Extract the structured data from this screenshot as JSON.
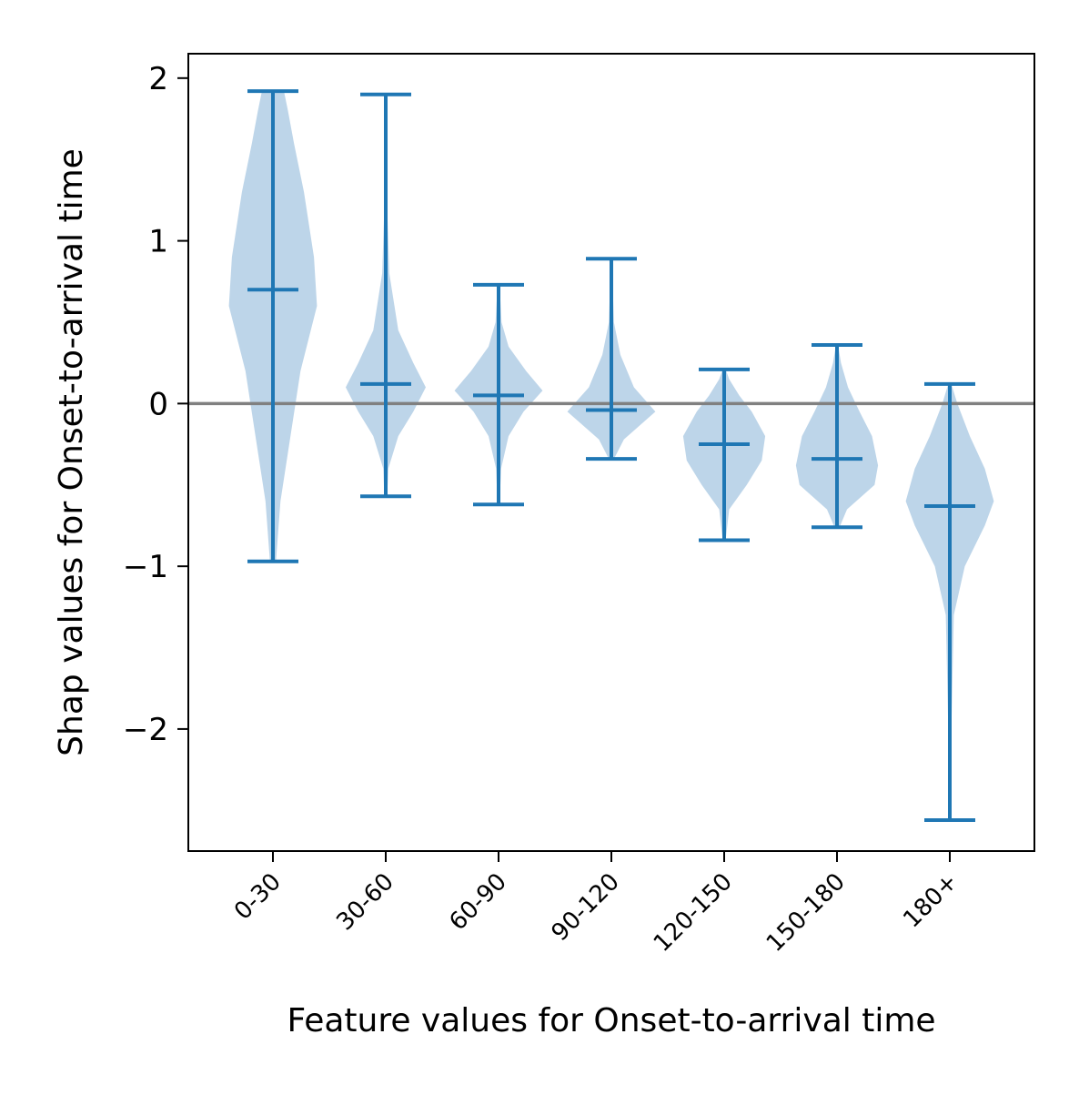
{
  "chart_data": {
    "type": "violin",
    "title": "",
    "xlabel": "Feature values for Onset-to-arrival time",
    "ylabel": "Shap values for Onset-to-arrival time",
    "ylim": [
      -2.75,
      2.15
    ],
    "yticks": [
      -2,
      -1,
      0,
      1,
      2
    ],
    "ytick_labels": [
      "−2",
      "−1",
      "0",
      "1",
      "2"
    ],
    "categories": [
      "0-30",
      "30-60",
      "60-90",
      "90-120",
      "120-150",
      "150-180",
      "180+"
    ],
    "reference_line": 0,
    "colors": {
      "body": "#a7c7e1",
      "lines": "#1f77b4",
      "reference_line": "#808080"
    },
    "violins": [
      {
        "category": "0-30",
        "min": -0.97,
        "max": 1.92,
        "mean": 0.7,
        "profile": [
          [
            -0.97,
            0.06
          ],
          [
            -0.6,
            0.15
          ],
          [
            -0.2,
            0.35
          ],
          [
            0.2,
            0.55
          ],
          [
            0.6,
            0.88
          ],
          [
            0.9,
            0.82
          ],
          [
            1.3,
            0.62
          ],
          [
            1.6,
            0.42
          ],
          [
            1.8,
            0.3
          ],
          [
            1.92,
            0.22
          ]
        ]
      },
      {
        "category": "30-60",
        "min": -0.57,
        "max": 1.9,
        "mean": 0.12,
        "profile": [
          [
            -0.57,
            0.03
          ],
          [
            -0.4,
            0.05
          ],
          [
            -0.2,
            0.25
          ],
          [
            -0.05,
            0.55
          ],
          [
            0.1,
            0.8
          ],
          [
            0.25,
            0.55
          ],
          [
            0.45,
            0.25
          ],
          [
            0.8,
            0.07
          ],
          [
            1.2,
            0.03
          ],
          [
            1.9,
            0.01
          ]
        ]
      },
      {
        "category": "60-90",
        "min": -0.62,
        "max": 0.73,
        "mean": 0.05,
        "profile": [
          [
            -0.62,
            0.02
          ],
          [
            -0.4,
            0.05
          ],
          [
            -0.2,
            0.2
          ],
          [
            -0.05,
            0.5
          ],
          [
            0.08,
            0.88
          ],
          [
            0.2,
            0.55
          ],
          [
            0.35,
            0.2
          ],
          [
            0.5,
            0.06
          ],
          [
            0.73,
            0.02
          ]
        ]
      },
      {
        "category": "90-120",
        "min": -0.34,
        "max": 0.89,
        "mean": -0.04,
        "profile": [
          [
            -0.34,
            0.05
          ],
          [
            -0.22,
            0.25
          ],
          [
            -0.05,
            0.88
          ],
          [
            0.1,
            0.45
          ],
          [
            0.3,
            0.18
          ],
          [
            0.5,
            0.05
          ],
          [
            0.89,
            0.01
          ]
        ]
      },
      {
        "category": "120-150",
        "min": -0.84,
        "max": 0.21,
        "mean": -0.25,
        "profile": [
          [
            -0.84,
            0.03
          ],
          [
            -0.65,
            0.1
          ],
          [
            -0.5,
            0.45
          ],
          [
            -0.35,
            0.75
          ],
          [
            -0.2,
            0.82
          ],
          [
            -0.05,
            0.55
          ],
          [
            0.05,
            0.3
          ],
          [
            0.15,
            0.1
          ],
          [
            0.21,
            0.03
          ]
        ]
      },
      {
        "category": "150-180",
        "min": -0.76,
        "max": 0.36,
        "mean": -0.34,
        "profile": [
          [
            -0.76,
            0.05
          ],
          [
            -0.65,
            0.2
          ],
          [
            -0.5,
            0.75
          ],
          [
            -0.38,
            0.82
          ],
          [
            -0.2,
            0.7
          ],
          [
            -0.05,
            0.45
          ],
          [
            0.1,
            0.22
          ],
          [
            0.25,
            0.08
          ],
          [
            0.36,
            0.02
          ]
        ]
      },
      {
        "category": "180+",
        "min": -2.56,
        "max": 0.12,
        "mean": -0.63,
        "profile": [
          [
            -2.56,
            0.01
          ],
          [
            -2.0,
            0.03
          ],
          [
            -1.3,
            0.08
          ],
          [
            -1.0,
            0.3
          ],
          [
            -0.75,
            0.7
          ],
          [
            -0.6,
            0.88
          ],
          [
            -0.4,
            0.7
          ],
          [
            -0.2,
            0.4
          ],
          [
            0.0,
            0.15
          ],
          [
            0.12,
            0.03
          ]
        ]
      }
    ]
  }
}
